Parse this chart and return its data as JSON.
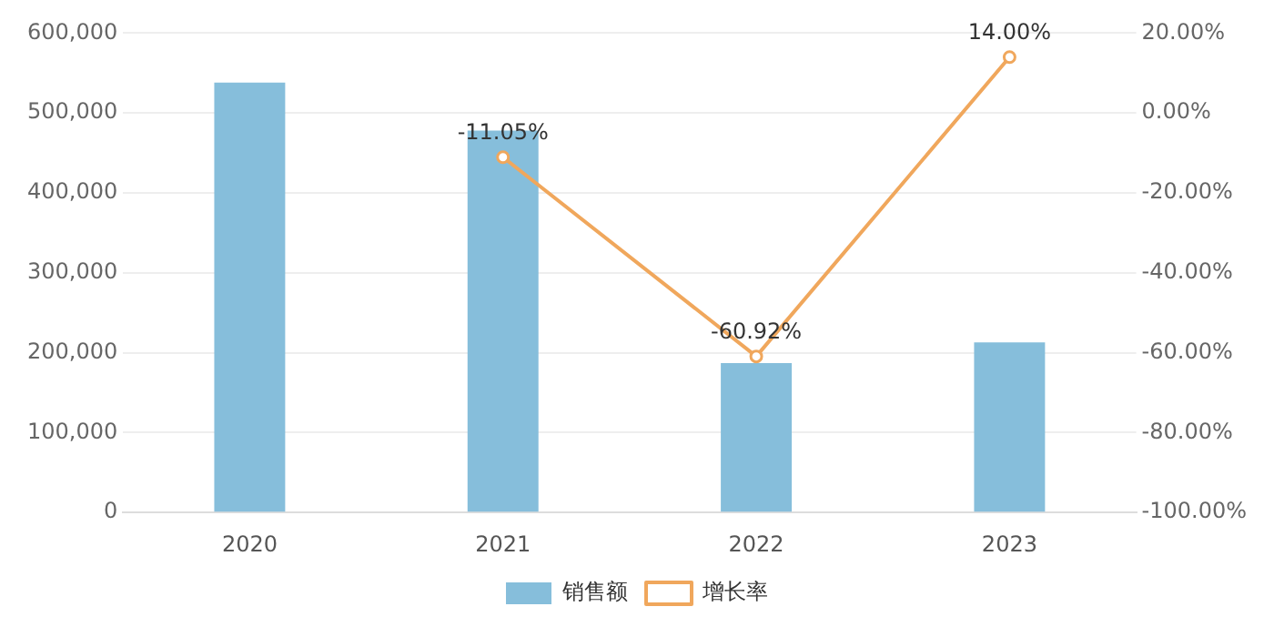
{
  "chart_data": {
    "type": "bar",
    "categories": [
      "2020",
      "2021",
      "2022",
      "2023"
    ],
    "series": [
      {
        "name": "销售额",
        "color": "#86bedb",
        "values": [
          538000,
          478000,
          187000,
          213000
        ]
      },
      {
        "name": "增长率",
        "type": "line",
        "axis": "y2",
        "color": "#f0a75c",
        "values": [
          null,
          -11.05,
          -60.92,
          14.0
        ],
        "value_labels": [
          null,
          "-11.05%",
          "-60.92%",
          "14.00%"
        ]
      }
    ],
    "ylim": [
      0,
      600000
    ],
    "yticks": [
      0,
      {
        "value": 100000,
        "label": "100,000"
      },
      {
        "value": 200000,
        "label": "200,000"
      },
      {
        "value": 300000,
        "label": "300,000"
      },
      {
        "value": 400000,
        "label": "400,000"
      },
      {
        "value": 500000,
        "label": "500,000"
      },
      {
        "value": 600000,
        "label": "600,000"
      }
    ],
    "y2lim": [
      -100,
      20
    ],
    "y2ticks": [
      {
        "value": -100,
        "label": "-100.00%"
      },
      {
        "value": -80,
        "label": "-80.00%"
      },
      {
        "value": -60,
        "label": "-60.00%"
      },
      {
        "value": -40,
        "label": "-40.00%"
      },
      {
        "value": -20,
        "label": "-20.00%"
      },
      {
        "value": 0,
        "label": "0.00%"
      },
      {
        "value": 20,
        "label": "20.00%"
      }
    ],
    "grid": "y",
    "legend": "bottom",
    "marker": "circle"
  }
}
